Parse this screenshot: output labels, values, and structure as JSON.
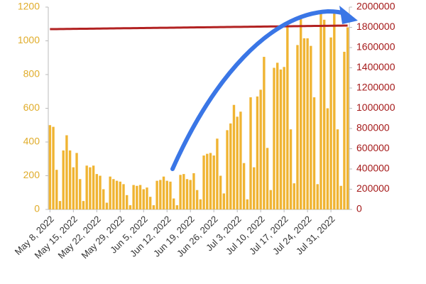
{
  "chart_data": {
    "type": "bar",
    "categories": [
      "May 8, 2022",
      null,
      null,
      null,
      null,
      null,
      null,
      "May 15, 2022",
      null,
      null,
      null,
      null,
      null,
      null,
      "May 22, 2022",
      null,
      null,
      null,
      null,
      null,
      null,
      "May 29, 2022",
      null,
      null,
      null,
      null,
      null,
      null,
      "Jun 5, 2022",
      null,
      null,
      null,
      null,
      null,
      null,
      "Jun 12, 2022",
      null,
      null,
      null,
      null,
      null,
      null,
      "Jun 19, 2022",
      null,
      null,
      null,
      null,
      null,
      null,
      "Jun 26, 2022",
      null,
      null,
      null,
      null,
      null,
      null,
      "Jul 3, 2022",
      null,
      null,
      null,
      null,
      null,
      null,
      "Jul 10, 2022",
      null,
      null,
      null,
      null,
      null,
      null,
      "Jul 17, 2022",
      null,
      null,
      null,
      null,
      null,
      null,
      "Jul 24, 2022",
      null,
      null,
      null,
      null,
      null,
      null,
      "Jul 31, 2022",
      null,
      null,
      null,
      null,
      null
    ],
    "series": [
      {
        "type": "bar",
        "color": "#f0b432",
        "values": [
          500,
          490,
          235,
          50,
          350,
          440,
          350,
          250,
          335,
          180,
          50,
          260,
          250,
          260,
          210,
          200,
          120,
          40,
          195,
          180,
          170,
          165,
          150,
          85,
          25,
          145,
          140,
          145,
          120,
          130,
          75,
          25,
          170,
          175,
          195,
          170,
          165,
          65,
          25,
          205,
          210,
          180,
          175,
          215,
          115,
          60,
          320,
          330,
          335,
          320,
          420,
          200,
          95,
          470,
          510,
          620,
          550,
          580,
          275,
          60,
          665,
          250,
          670,
          710,
          905,
          365,
          115,
          840,
          870,
          830,
          845,
          1085,
          475,
          155,
          975,
          1140,
          1015,
          1015,
          970,
          665,
          150,
          1175,
          1125,
          600,
          1020,
          1175,
          475,
          140,
          935,
          1080
        ]
      },
      {
        "type": "line",
        "axis": "y2",
        "color": "#b22222",
        "values": [
          1782000,
          1782400,
          1782800,
          1783200,
          1783600,
          1784000,
          1784400,
          1784800,
          1785200,
          1785600,
          1786000,
          1786400,
          1786800,
          1787200,
          1787600,
          1788000,
          1788400,
          1788800,
          1789200,
          1789600,
          1790000,
          1790400,
          1790800,
          1791200,
          1791600,
          1792000,
          1792400,
          1792800,
          1793200,
          1793600,
          1794000,
          1794400,
          1794800,
          1795200,
          1795600,
          1796000,
          1796400,
          1796800,
          1797200,
          1797600,
          1798000,
          1798400,
          1798800,
          1799200,
          1799600,
          1800000,
          1800400,
          1800800,
          1801200,
          1801600,
          1802000,
          1802400,
          1802800,
          1803200,
          1803600,
          1804000,
          1804400,
          1804800,
          1805200,
          1805600,
          1806000,
          1806400,
          1806800,
          1807200,
          1807600,
          1808000,
          1808400,
          1808800,
          1809200,
          1809600,
          1810000,
          1810400,
          1810800,
          1811200,
          1811600,
          1812000,
          1812400,
          1812800,
          1813200,
          1813600,
          1814000,
          1814400,
          1814800,
          1815200,
          1815600,
          1816000,
          1816400,
          1816800,
          1817200,
          1817600
        ]
      }
    ],
    "ylim": [
      0,
      1200
    ],
    "yticks": [
      0,
      200,
      400,
      600,
      800,
      1000,
      1200
    ],
    "y2lim": [
      0,
      2000000
    ],
    "y2ticks": [
      0,
      200000,
      400000,
      600000,
      800000,
      1000000,
      1200000,
      1400000,
      1600000,
      1800000,
      2000000
    ],
    "ytick_color": "#e0ac2a",
    "y2tick_color": "#a51a1a",
    "grid": false
  }
}
